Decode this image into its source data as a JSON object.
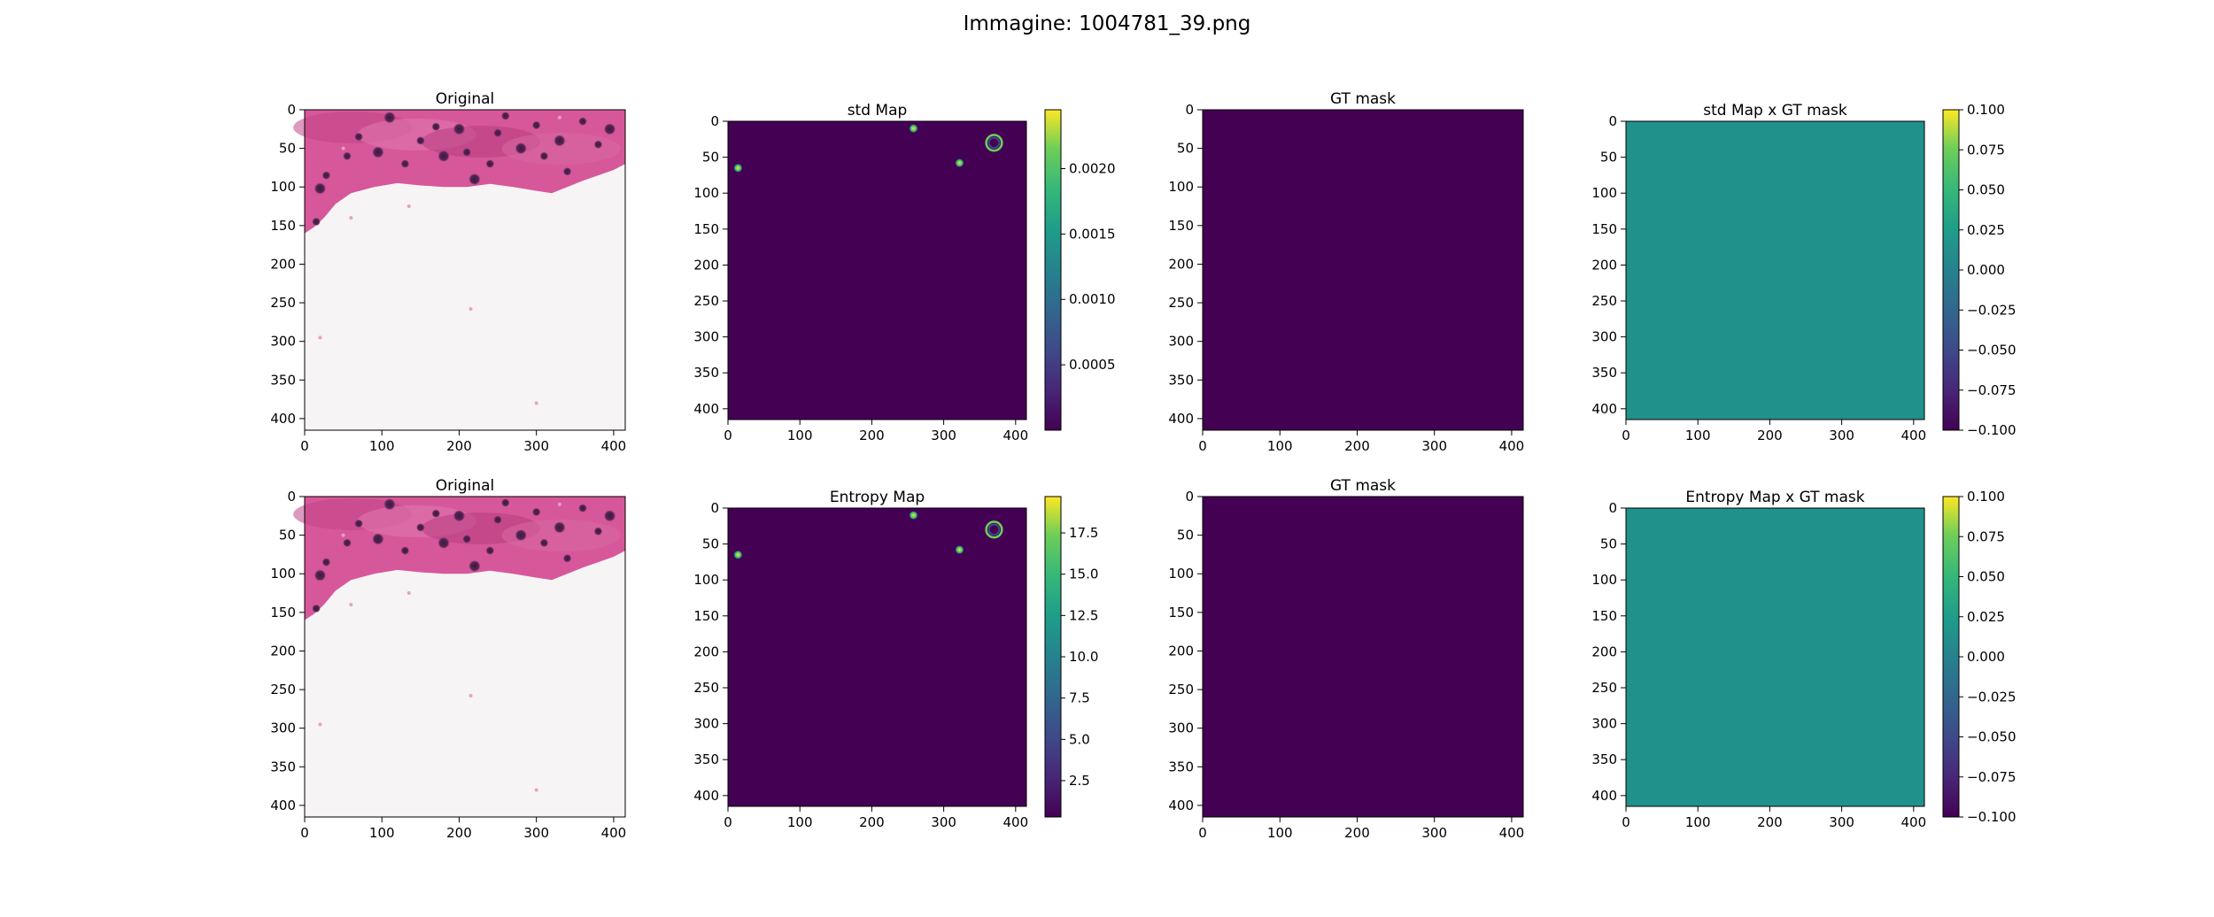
{
  "suptitle": "Immagine: 1004781_39.png",
  "colors": {
    "viridis_low": "#440154",
    "viridis_mid": "#21918c",
    "viridis_high": "#fde725",
    "tissue_pink": "#d6589a",
    "background_white": "#f6f4f5"
  },
  "chart_data": [
    {
      "type": "heatmap",
      "title": "Original",
      "row": 1,
      "col": 1,
      "image": "histology-patch",
      "xticks": [
        0,
        100,
        200,
        300,
        400
      ],
      "yticks": [
        0,
        50,
        100,
        150,
        200,
        250,
        300,
        350,
        400
      ],
      "xlim": [
        0,
        415
      ],
      "ylim": [
        415,
        0
      ],
      "colorbar": null
    },
    {
      "type": "heatmap",
      "title": "std Map",
      "row": 1,
      "col": 2,
      "image": "uncertainty-map",
      "xticks": [
        0,
        100,
        200,
        300,
        400
      ],
      "yticks": [
        0,
        50,
        100,
        150,
        200,
        250,
        300,
        350,
        400
      ],
      "xlim": [
        0,
        415
      ],
      "ylim": [
        415,
        0
      ],
      "hotspots": [
        {
          "x": 258,
          "y": 10,
          "value": 0.0018
        },
        {
          "x": 370,
          "y": 30,
          "value": 0.0012,
          "ring": true
        },
        {
          "x": 322,
          "y": 58,
          "value": 0.0019
        },
        {
          "x": 14,
          "y": 65,
          "value": 0.0015
        }
      ],
      "colorbar": {
        "ticks": [
          0.0005,
          0.001,
          0.0015,
          0.002
        ],
        "labels": [
          "0.0005",
          "0.0010",
          "0.0015",
          "0.0020"
        ],
        "range": [
          0.0,
          0.00245
        ]
      }
    },
    {
      "type": "heatmap",
      "title": "GT mask",
      "row": 1,
      "col": 3,
      "image": "constant-low",
      "xticks": [
        0,
        100,
        200,
        300,
        400
      ],
      "yticks": [
        0,
        50,
        100,
        150,
        200,
        250,
        300,
        350,
        400
      ],
      "xlim": [
        0,
        415
      ],
      "ylim": [
        415,
        0
      ],
      "colorbar": null
    },
    {
      "type": "heatmap",
      "title": "std Map x GT mask",
      "row": 1,
      "col": 4,
      "image": "constant-mid",
      "xticks": [
        0,
        100,
        200,
        300,
        400
      ],
      "yticks": [
        0,
        50,
        100,
        150,
        200,
        250,
        300,
        350,
        400
      ],
      "xlim": [
        0,
        415
      ],
      "ylim": [
        415,
        0
      ],
      "colorbar": {
        "ticks": [
          -0.1,
          -0.075,
          -0.05,
          -0.025,
          0.0,
          0.025,
          0.05,
          0.075,
          0.1
        ],
        "labels": [
          "−0.100",
          "−0.075",
          "−0.050",
          "−0.025",
          "0.000",
          "0.025",
          "0.050",
          "0.075",
          "0.100"
        ],
        "range": [
          -0.1,
          0.1
        ]
      }
    },
    {
      "type": "heatmap",
      "title": "Original",
      "row": 2,
      "col": 1,
      "image": "histology-patch",
      "xticks": [
        0,
        100,
        200,
        300,
        400
      ],
      "yticks": [
        0,
        50,
        100,
        150,
        200,
        250,
        300,
        350,
        400
      ],
      "xlim": [
        0,
        415
      ],
      "ylim": [
        415,
        0
      ],
      "colorbar": null
    },
    {
      "type": "heatmap",
      "title": "Entropy Map",
      "row": 2,
      "col": 2,
      "image": "uncertainty-map",
      "xticks": [
        0,
        100,
        200,
        300,
        400
      ],
      "yticks": [
        0,
        50,
        100,
        150,
        200,
        250,
        300,
        350,
        400
      ],
      "xlim": [
        0,
        415
      ],
      "ylim": [
        415,
        0
      ],
      "hotspots": [
        {
          "x": 258,
          "y": 10,
          "value": 17
        },
        {
          "x": 370,
          "y": 30,
          "value": 12,
          "ring": true
        },
        {
          "x": 322,
          "y": 58,
          "value": 18
        },
        {
          "x": 14,
          "y": 65,
          "value": 12
        }
      ],
      "colorbar": {
        "ticks": [
          2.5,
          5.0,
          7.5,
          10.0,
          12.5,
          15.0,
          17.5
        ],
        "labels": [
          "2.5",
          "5.0",
          "7.5",
          "10.0",
          "12.5",
          "15.0",
          "17.5"
        ],
        "range": [
          0.3,
          19.7
        ]
      }
    },
    {
      "type": "heatmap",
      "title": "GT mask",
      "row": 2,
      "col": 3,
      "image": "constant-low",
      "xticks": [
        0,
        100,
        200,
        300,
        400
      ],
      "yticks": [
        0,
        50,
        100,
        150,
        200,
        250,
        300,
        350,
        400
      ],
      "xlim": [
        0,
        415
      ],
      "ylim": [
        415,
        0
      ],
      "colorbar": null
    },
    {
      "type": "heatmap",
      "title": "Entropy Map x GT mask",
      "row": 2,
      "col": 4,
      "image": "constant-mid",
      "xticks": [
        0,
        100,
        200,
        300,
        400
      ],
      "yticks": [
        0,
        50,
        100,
        150,
        200,
        250,
        300,
        350,
        400
      ],
      "xlim": [
        0,
        415
      ],
      "ylim": [
        415,
        0
      ],
      "colorbar": {
        "ticks": [
          -0.1,
          -0.075,
          -0.05,
          -0.025,
          0.0,
          0.025,
          0.05,
          0.075,
          0.1
        ],
        "labels": [
          "−0.100",
          "−0.075",
          "−0.050",
          "−0.025",
          "0.000",
          "0.025",
          "0.050",
          "0.075",
          "0.100"
        ],
        "range": [
          -0.1,
          0.1
        ]
      }
    }
  ]
}
